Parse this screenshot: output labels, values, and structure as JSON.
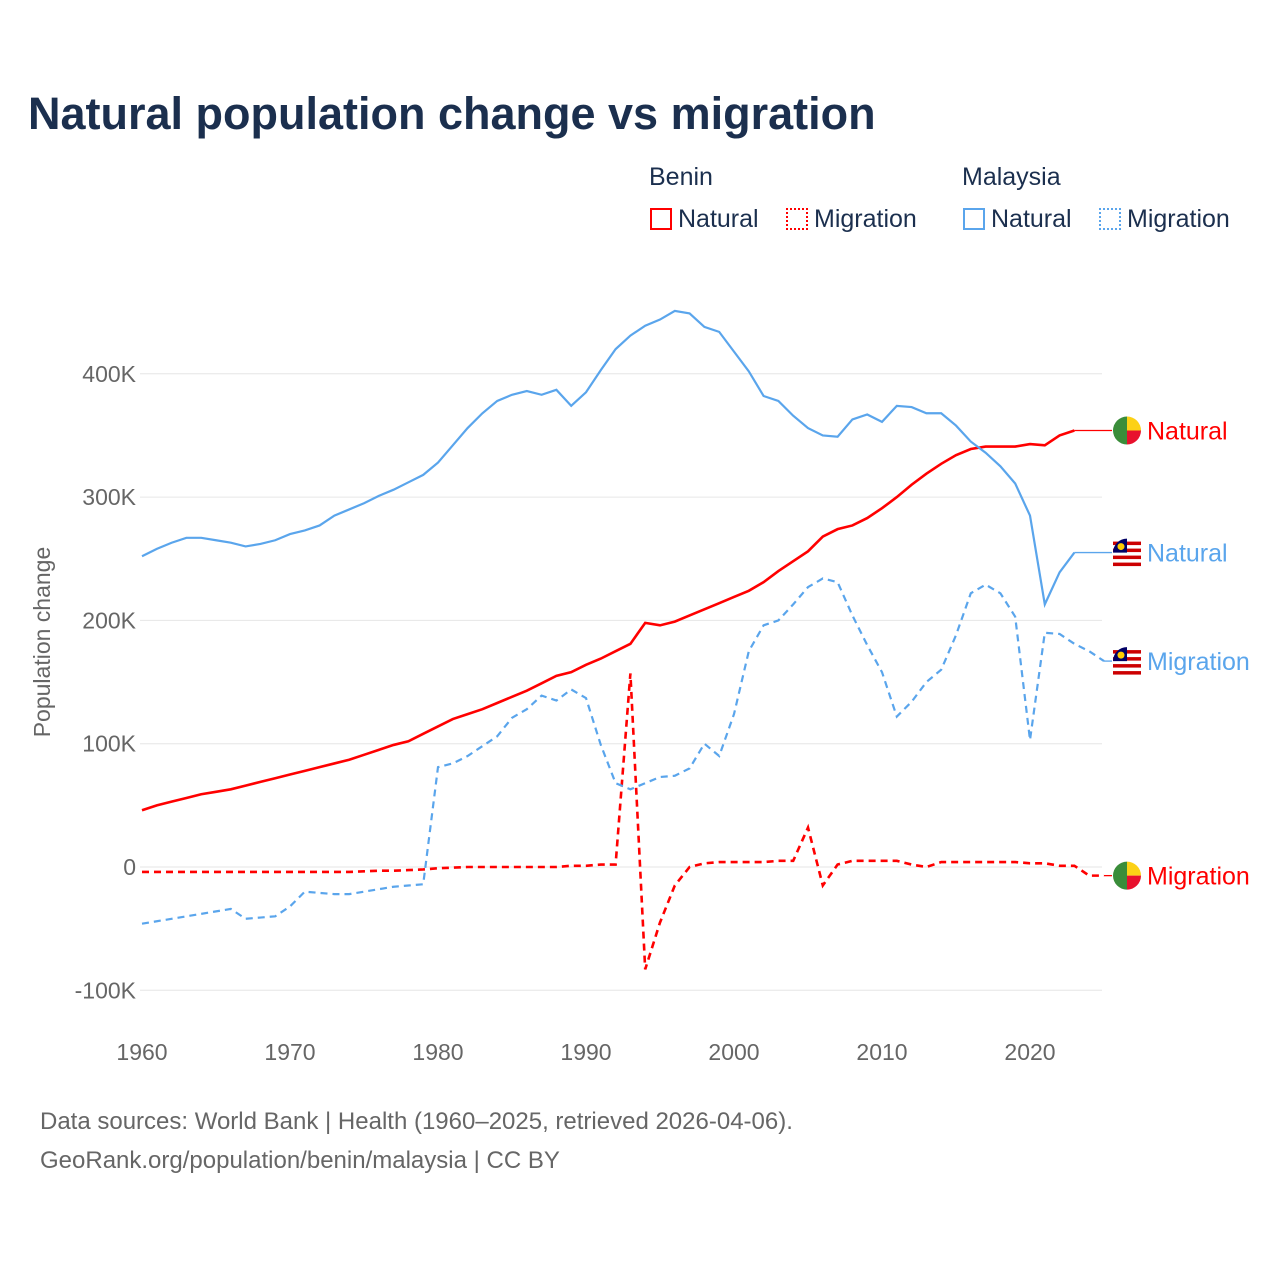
{
  "title": "Natural population change vs migration",
  "legend": {
    "groups": [
      {
        "name": "Benin",
        "items": [
          "Natural",
          "Migration"
        ]
      },
      {
        "name": "Malaysia",
        "items": [
          "Natural",
          "Migration"
        ]
      }
    ]
  },
  "colors": {
    "benin": "#ff0000",
    "malaysia": "#5aa5ec"
  },
  "source_line1": "Data sources: World Bank | Health (1960–2025, retrieved 2026-04-06).",
  "source_line2": "GeoRank.org/population/benin/malaysia | CC BY",
  "chart_data": {
    "type": "line",
    "title": "Natural population change vs migration",
    "xlabel": "",
    "ylabel": "Population change",
    "xlim": [
      1960,
      2025
    ],
    "ylim": [
      -100000,
      450000
    ],
    "xticks": [
      1960,
      1970,
      1980,
      1990,
      2000,
      2010,
      2020
    ],
    "xtick_labels": [
      "1960",
      "1970",
      "1980",
      "1990",
      "2000",
      "2010",
      "2020"
    ],
    "yticks": [
      -100000,
      0,
      100000,
      200000,
      300000,
      400000
    ],
    "ytick_labels": [
      "-100K",
      "0",
      "100K",
      "200K",
      "300K",
      "400K"
    ],
    "grid": true,
    "series": [
      {
        "name": "Benin Natural",
        "end_label": "Natural",
        "country": "benin",
        "dash": false,
        "start": 1960,
        "values": [
          46,
          50,
          53,
          56,
          59,
          61,
          63,
          66,
          69,
          72,
          75,
          78,
          81,
          84,
          87,
          91,
          95,
          99,
          102,
          108,
          114,
          120,
          124,
          128,
          133,
          138,
          143,
          149,
          155,
          158,
          164,
          169,
          175,
          181,
          198,
          196,
          199,
          204,
          209,
          214,
          219,
          224,
          231,
          240,
          248,
          256,
          268,
          274,
          277,
          283,
          291,
          300,
          310,
          319,
          327,
          334,
          339,
          341,
          341,
          341,
          343,
          342,
          350,
          354
        ]
      },
      {
        "name": "Benin Migration",
        "end_label": "Migration",
        "country": "benin",
        "dash": true,
        "start": 1960,
        "values": [
          -4,
          -4,
          -4,
          -4,
          -4,
          -4,
          -4,
          -4,
          -4,
          -4,
          -4,
          -4,
          -4,
          -4,
          -4,
          -3.5,
          -3,
          -3,
          -2.5,
          -2,
          -1,
          -0.5,
          0,
          0,
          0,
          0,
          0,
          0,
          0,
          1,
          1,
          2,
          2,
          157,
          -83,
          -45,
          -15,
          0,
          3,
          4,
          4,
          4,
          4,
          5,
          5,
          32,
          -15,
          2,
          5,
          5,
          5,
          5,
          2,
          0,
          4,
          4,
          4,
          4,
          4,
          4,
          3,
          3,
          1,
          1,
          -7,
          -7
        ]
      },
      {
        "name": "Malaysia Natural",
        "end_label": "Natural",
        "country": "malaysia",
        "dash": false,
        "start": 1960,
        "values": [
          252,
          258,
          263,
          267,
          267,
          265,
          263,
          260,
          262,
          265,
          270,
          273,
          277,
          285,
          290,
          295,
          301,
          306,
          312,
          318,
          328,
          342,
          356,
          368,
          378,
          383,
          386,
          383,
          387,
          374,
          385,
          403,
          420,
          431,
          439,
          444,
          451,
          449,
          438,
          434,
          418,
          402,
          382,
          378,
          366,
          356,
          350,
          349,
          363,
          367,
          361,
          374,
          373,
          368,
          368,
          358,
          345,
          336,
          325,
          311,
          285,
          213,
          239,
          255
        ]
      },
      {
        "name": "Malaysia Migration",
        "end_label": "Migration",
        "country": "malaysia",
        "dash": true,
        "start": 1960,
        "values": [
          -46,
          -44,
          -42,
          -40,
          -38,
          -36,
          -34,
          -42,
          -41,
          -40,
          -32,
          -20,
          -21,
          -22,
          -22,
          -20,
          -18,
          -16,
          -15,
          -14,
          81,
          84,
          90,
          98,
          106,
          121,
          128,
          139,
          135,
          144,
          137,
          99,
          68,
          63,
          68,
          73,
          74,
          80,
          100,
          90,
          124,
          175,
          196,
          200,
          213,
          227,
          234,
          231,
          204,
          180,
          158,
          122,
          134,
          150,
          160,
          188,
          222,
          229,
          222,
          203,
          103,
          190,
          189,
          181,
          175,
          167
        ]
      }
    ],
    "value_unit": "thousands"
  }
}
